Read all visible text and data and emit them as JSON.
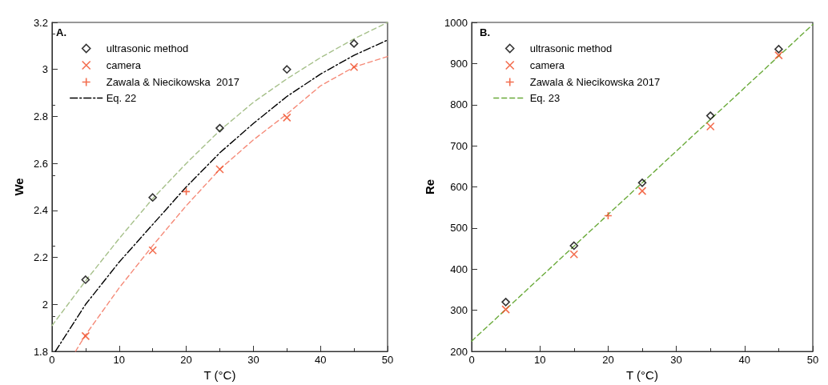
{
  "chart_data": [
    {
      "type": "scatter",
      "annotations": [
        "A."
      ],
      "xlabel": "T (°C)",
      "ylabel": "We",
      "xlim": [
        0,
        50
      ],
      "xticks": [
        0,
        10,
        20,
        30,
        40,
        50
      ],
      "ylim": [
        1.8,
        3.2
      ],
      "yticks": [
        1.8,
        2,
        2.2,
        2.4,
        2.6,
        2.8,
        3,
        3.2
      ],
      "legend": "top left",
      "grid": false,
      "series": [
        {
          "name": "ultrasonic method",
          "color": "#000000",
          "marker": "diamond",
          "x": [
            5,
            15,
            25,
            35,
            45
          ],
          "values": [
            2.105,
            2.455,
            2.75,
            3.0,
            3.11
          ]
        },
        {
          "name": "camera",
          "color": "#f04a23",
          "marker": "cross",
          "x": [
            5,
            15,
            25,
            35,
            45
          ],
          "values": [
            1.865,
            2.23,
            2.575,
            2.795,
            3.01
          ]
        },
        {
          "name": "Zawala & Niecikowska  2017",
          "color": "#f04a23",
          "marker": "plus",
          "x": [
            20
          ],
          "values": [
            2.48
          ]
        },
        {
          "name": "Eq. 22",
          "type": "line",
          "color": "#000000",
          "line_style": "dashdot",
          "marker": "none",
          "x": [
            0.5,
            5,
            10,
            15,
            20,
            25,
            30,
            35,
            40,
            45,
            50
          ],
          "values": [
            1.8,
            2.0,
            2.18,
            2.34,
            2.5,
            2.645,
            2.77,
            2.885,
            2.98,
            3.06,
            3.125
          ]
        },
        {
          "type": "line",
          "color": "#a6c08a",
          "line_style": "dashed",
          "marker": "none",
          "x": [
            0,
            5,
            10,
            15,
            20,
            25,
            30,
            35,
            40,
            45,
            50
          ],
          "values": [
            1.91,
            2.1,
            2.28,
            2.45,
            2.6,
            2.74,
            2.86,
            2.96,
            3.05,
            3.13,
            3.2
          ]
        },
        {
          "type": "line",
          "color": "#f58a78",
          "line_style": "dashed",
          "marker": "none",
          "x": [
            3.5,
            5,
            10,
            15,
            20,
            25,
            30,
            35,
            40,
            45,
            50
          ],
          "values": [
            1.8,
            1.87,
            2.07,
            2.25,
            2.42,
            2.575,
            2.7,
            2.81,
            2.93,
            3.01,
            3.055
          ]
        }
      ]
    },
    {
      "type": "scatter",
      "annotations": [
        "B."
      ],
      "xlabel": "T (°C)",
      "ylabel": "Re",
      "xlim": [
        0,
        50
      ],
      "xticks": [
        0,
        10,
        20,
        30,
        40,
        50
      ],
      "ylim": [
        200,
        1000
      ],
      "yticks": [
        200,
        300,
        400,
        500,
        600,
        700,
        800,
        900,
        1000
      ],
      "legend": "top left",
      "grid": false,
      "series": [
        {
          "name": "ultrasonic method",
          "color": "#000000",
          "marker": "diamond",
          "x": [
            5,
            15,
            25,
            35,
            45
          ],
          "values": [
            320,
            457,
            610,
            773,
            935
          ]
        },
        {
          "name": "camera",
          "color": "#f04a23",
          "marker": "cross",
          "x": [
            5,
            15,
            25,
            35,
            45
          ],
          "values": [
            302,
            436,
            590,
            747,
            920
          ]
        },
        {
          "name": "Zawala & Niecikowska 2017",
          "color": "#f04a23",
          "marker": "plus",
          "x": [
            20
          ],
          "values": [
            530
          ]
        },
        {
          "name": "Eq. 23",
          "type": "line",
          "color": "#6aaa3a",
          "line_style": "dashed",
          "marker": "none",
          "x": [
            0,
            50
          ],
          "values": [
            225,
            995
          ]
        }
      ]
    }
  ]
}
